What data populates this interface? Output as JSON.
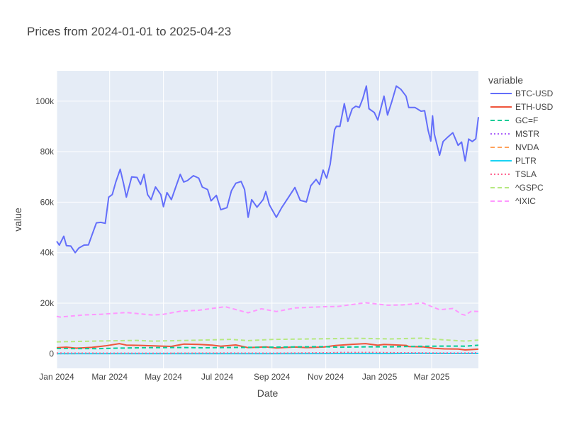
{
  "chart_data": {
    "type": "line",
    "title": "Prices from 2024-01-01 to 2025-04-23",
    "xlabel": "Date",
    "ylabel": "value",
    "x_range": [
      "2024-01-01",
      "2025-04-23"
    ],
    "ylim": [
      -5800,
      112000
    ],
    "x_ticks": [
      {
        "date": "2024-01-01",
        "label": "Jan 2024"
      },
      {
        "date": "2024-03-01",
        "label": "Mar 2024"
      },
      {
        "date": "2024-05-01",
        "label": "May 2024"
      },
      {
        "date": "2024-07-01",
        "label": "Jul 2024"
      },
      {
        "date": "2024-09-01",
        "label": "Sep 2024"
      },
      {
        "date": "2024-11-01",
        "label": "Nov 2024"
      },
      {
        "date": "2025-01-01",
        "label": "Jan 2025"
      },
      {
        "date": "2025-03-01",
        "label": "Mar 2025"
      }
    ],
    "y_ticks": [
      {
        "value": 0,
        "label": "0"
      },
      {
        "value": 20000,
        "label": "20k"
      },
      {
        "value": 40000,
        "label": "40k"
      },
      {
        "value": 60000,
        "label": "60k"
      },
      {
        "value": 80000,
        "label": "80k"
      },
      {
        "value": 100000,
        "label": "100k"
      }
    ],
    "grid": true,
    "plot_background": "#e5ecf6",
    "legend": {
      "title": "variable",
      "placement": "right"
    },
    "series": [
      {
        "name": "BTC-USD",
        "color": "#636efa",
        "dash": "solid",
        "points": [
          [
            "2024-01-01",
            44500
          ],
          [
            "2024-01-04",
            43000
          ],
          [
            "2024-01-09",
            46500
          ],
          [
            "2024-01-12",
            42800
          ],
          [
            "2024-01-17",
            42600
          ],
          [
            "2024-01-22",
            40000
          ],
          [
            "2024-01-26",
            41800
          ],
          [
            "2024-02-01",
            43000
          ],
          [
            "2024-02-06",
            43100
          ],
          [
            "2024-02-10",
            47000
          ],
          [
            "2024-02-15",
            51800
          ],
          [
            "2024-02-20",
            52000
          ],
          [
            "2024-02-25",
            51600
          ],
          [
            "2024-02-29",
            62000
          ],
          [
            "2024-03-04",
            63000
          ],
          [
            "2024-03-08",
            68000
          ],
          [
            "2024-03-13",
            73000
          ],
          [
            "2024-03-17",
            67000
          ],
          [
            "2024-03-20",
            62000
          ],
          [
            "2024-03-26",
            70000
          ],
          [
            "2024-04-01",
            69800
          ],
          [
            "2024-04-05",
            67000
          ],
          [
            "2024-04-09",
            71000
          ],
          [
            "2024-04-13",
            63000
          ],
          [
            "2024-04-17",
            61000
          ],
          [
            "2024-04-22",
            66000
          ],
          [
            "2024-04-28",
            63000
          ],
          [
            "2024-05-01",
            58200
          ],
          [
            "2024-05-05",
            63800
          ],
          [
            "2024-05-10",
            61000
          ],
          [
            "2024-05-15",
            66000
          ],
          [
            "2024-05-20",
            71000
          ],
          [
            "2024-05-24",
            68000
          ],
          [
            "2024-05-28",
            68500
          ],
          [
            "2024-06-04",
            70500
          ],
          [
            "2024-06-10",
            69500
          ],
          [
            "2024-06-14",
            66000
          ],
          [
            "2024-06-20",
            65000
          ],
          [
            "2024-06-24",
            60500
          ],
          [
            "2024-06-30",
            62700
          ],
          [
            "2024-07-05",
            57000
          ],
          [
            "2024-07-12",
            57800
          ],
          [
            "2024-07-17",
            64500
          ],
          [
            "2024-07-22",
            67500
          ],
          [
            "2024-07-28",
            68200
          ],
          [
            "2024-08-01",
            65000
          ],
          [
            "2024-08-05",
            54000
          ],
          [
            "2024-08-09",
            61000
          ],
          [
            "2024-08-15",
            58000
          ],
          [
            "2024-08-22",
            61000
          ],
          [
            "2024-08-25",
            64200
          ],
          [
            "2024-08-29",
            59000
          ],
          [
            "2024-09-06",
            54000
          ],
          [
            "2024-09-12",
            57800
          ],
          [
            "2024-09-18",
            61000
          ],
          [
            "2024-09-27",
            65800
          ],
          [
            "2024-10-03",
            60700
          ],
          [
            "2024-10-10",
            60100
          ],
          [
            "2024-10-15",
            66500
          ],
          [
            "2024-10-21",
            69000
          ],
          [
            "2024-10-25",
            67000
          ],
          [
            "2024-10-29",
            72700
          ],
          [
            "2024-11-02",
            69500
          ],
          [
            "2024-11-06",
            75000
          ],
          [
            "2024-11-11",
            88700
          ],
          [
            "2024-11-13",
            90000
          ],
          [
            "2024-11-17",
            90000
          ],
          [
            "2024-11-22",
            99000
          ],
          [
            "2024-11-26",
            92000
          ],
          [
            "2024-12-01",
            97000
          ],
          [
            "2024-12-05",
            98000
          ],
          [
            "2024-12-09",
            97500
          ],
          [
            "2024-12-13",
            101000
          ],
          [
            "2024-12-17",
            106000
          ],
          [
            "2024-12-20",
            97000
          ],
          [
            "2024-12-26",
            95500
          ],
          [
            "2024-12-30",
            92500
          ],
          [
            "2025-01-06",
            102000
          ],
          [
            "2025-01-10",
            94500
          ],
          [
            "2025-01-15",
            100000
          ],
          [
            "2025-01-20",
            106000
          ],
          [
            "2025-01-25",
            104700
          ],
          [
            "2025-01-31",
            102000
          ],
          [
            "2025-02-03",
            97500
          ],
          [
            "2025-02-10",
            97500
          ],
          [
            "2025-02-17",
            96000
          ],
          [
            "2025-02-21",
            96200
          ],
          [
            "2025-02-25",
            88500
          ],
          [
            "2025-02-28",
            84200
          ],
          [
            "2025-03-02",
            94200
          ],
          [
            "2025-03-04",
            87000
          ],
          [
            "2025-03-10",
            78600
          ],
          [
            "2025-03-14",
            84000
          ],
          [
            "2025-03-20",
            86000
          ],
          [
            "2025-03-25",
            87500
          ],
          [
            "2025-03-31",
            82500
          ],
          [
            "2025-04-04",
            83800
          ],
          [
            "2025-04-08",
            76300
          ],
          [
            "2025-04-12",
            85000
          ],
          [
            "2025-04-16",
            84000
          ],
          [
            "2025-04-20",
            85100
          ],
          [
            "2025-04-23",
            93700
          ]
        ]
      },
      {
        "name": "ETH-USD",
        "color": "#ef553b",
        "dash": "solid",
        "points": [
          [
            "2024-01-01",
            2350
          ],
          [
            "2024-01-12",
            2600
          ],
          [
            "2024-01-23",
            2200
          ],
          [
            "2024-02-10",
            2500
          ],
          [
            "2024-02-25",
            3100
          ],
          [
            "2024-03-12",
            4000
          ],
          [
            "2024-03-20",
            3400
          ],
          [
            "2024-04-05",
            3300
          ],
          [
            "2024-04-20",
            3100
          ],
          [
            "2024-05-01",
            2950
          ],
          [
            "2024-05-10",
            2900
          ],
          [
            "2024-05-24",
            3800
          ],
          [
            "2024-06-10",
            3650
          ],
          [
            "2024-06-25",
            3400
          ],
          [
            "2024-07-05",
            2950
          ],
          [
            "2024-07-22",
            3450
          ],
          [
            "2024-08-05",
            2400
          ],
          [
            "2024-08-25",
            2700
          ],
          [
            "2024-09-06",
            2250
          ],
          [
            "2024-09-27",
            2650
          ],
          [
            "2024-10-10",
            2400
          ],
          [
            "2024-10-30",
            2650
          ],
          [
            "2024-11-12",
            3250
          ],
          [
            "2024-12-01",
            3700
          ],
          [
            "2024-12-16",
            4000
          ],
          [
            "2024-12-30",
            3350
          ],
          [
            "2025-01-06",
            3650
          ],
          [
            "2025-01-31",
            3300
          ],
          [
            "2025-02-03",
            2850
          ],
          [
            "2025-02-20",
            2700
          ],
          [
            "2025-03-04",
            2150
          ],
          [
            "2025-03-15",
            1900
          ],
          [
            "2025-03-31",
            1820
          ],
          [
            "2025-04-08",
            1480
          ],
          [
            "2025-04-23",
            1790
          ]
        ]
      },
      {
        "name": "GC=F",
        "color": "#00cc96",
        "dash": "dash",
        "points": [
          [
            "2024-01-01",
            2060
          ],
          [
            "2024-02-15",
            2000
          ],
          [
            "2024-03-10",
            2180
          ],
          [
            "2024-04-12",
            2380
          ],
          [
            "2024-05-20",
            2440
          ],
          [
            "2024-06-15",
            2320
          ],
          [
            "2024-07-15",
            2460
          ],
          [
            "2024-08-20",
            2520
          ],
          [
            "2024-09-25",
            2680
          ],
          [
            "2024-10-30",
            2790
          ],
          [
            "2024-11-15",
            2570
          ],
          [
            "2024-12-10",
            2700
          ],
          [
            "2025-01-15",
            2720
          ],
          [
            "2025-02-15",
            2930
          ],
          [
            "2025-03-15",
            3000
          ],
          [
            "2025-04-08",
            2980
          ],
          [
            "2025-04-23",
            3330
          ]
        ]
      },
      {
        "name": "MSTR",
        "color": "#ab63fa",
        "dash": "dot",
        "points": [
          [
            "2024-01-01",
            60
          ],
          [
            "2024-02-10",
            80
          ],
          [
            "2024-03-20",
            160
          ],
          [
            "2024-05-01",
            120
          ],
          [
            "2024-06-15",
            150
          ],
          [
            "2024-08-05",
            130
          ],
          [
            "2024-09-15",
            140
          ],
          [
            "2024-10-20",
            220
          ],
          [
            "2024-11-20",
            450
          ],
          [
            "2024-12-20",
            330
          ],
          [
            "2025-01-31",
            340
          ],
          [
            "2025-02-28",
            250
          ],
          [
            "2025-03-20",
            300
          ],
          [
            "2025-04-08",
            270
          ],
          [
            "2025-04-23",
            340
          ]
        ]
      },
      {
        "name": "NVDA",
        "color": "#ffa15a",
        "dash": "dash",
        "points": [
          [
            "2024-01-01",
            48
          ],
          [
            "2024-03-01",
            82
          ],
          [
            "2024-06-15",
            130
          ],
          [
            "2024-08-05",
            100
          ],
          [
            "2024-11-15",
            145
          ],
          [
            "2025-01-06",
            149
          ],
          [
            "2025-03-01",
            125
          ],
          [
            "2025-04-08",
            96
          ],
          [
            "2025-04-23",
            102
          ]
        ]
      },
      {
        "name": "PLTR",
        "color": "#19d3f3",
        "dash": "solid",
        "points": [
          [
            "2024-01-01",
            17
          ],
          [
            "2024-05-01",
            22
          ],
          [
            "2024-09-01",
            31
          ],
          [
            "2024-11-15",
            60
          ],
          [
            "2025-01-15",
            70
          ],
          [
            "2025-02-18",
            124
          ],
          [
            "2025-04-08",
            77
          ],
          [
            "2025-04-23",
            100
          ]
        ]
      },
      {
        "name": "TSLA",
        "color": "#ff6692",
        "dash": "dot",
        "points": [
          [
            "2024-01-01",
            248
          ],
          [
            "2024-04-20",
            142
          ],
          [
            "2024-07-10",
            263
          ],
          [
            "2024-09-01",
            214
          ],
          [
            "2024-12-17",
            479
          ],
          [
            "2025-03-10",
            222
          ],
          [
            "2025-04-08",
            221
          ],
          [
            "2025-04-23",
            250
          ]
        ]
      },
      {
        "name": "^GSPC",
        "color": "#b6e880",
        "dash": "dash",
        "points": [
          [
            "2024-01-01",
            4700
          ],
          [
            "2024-02-15",
            5000
          ],
          [
            "2024-04-01",
            5250
          ],
          [
            "2024-04-19",
            4970
          ],
          [
            "2024-06-01",
            5280
          ],
          [
            "2024-07-16",
            5660
          ],
          [
            "2024-08-05",
            5180
          ],
          [
            "2024-09-01",
            5650
          ],
          [
            "2024-10-15",
            5850
          ],
          [
            "2024-12-06",
            6090
          ],
          [
            "2025-01-13",
            5830
          ],
          [
            "2025-02-19",
            6140
          ],
          [
            "2025-03-13",
            5520
          ],
          [
            "2025-04-08",
            4980
          ],
          [
            "2025-04-23",
            5380
          ]
        ]
      },
      {
        "name": "^IXIC",
        "color": "#ff97ff",
        "dash": "dash",
        "points": [
          [
            "2024-01-01",
            14800
          ],
          [
            "2024-01-05",
            14500
          ],
          [
            "2024-02-01",
            15350
          ],
          [
            "2024-02-20",
            15600
          ],
          [
            "2024-03-20",
            16300
          ],
          [
            "2024-04-19",
            15280
          ],
          [
            "2024-05-01",
            15600
          ],
          [
            "2024-05-20",
            16800
          ],
          [
            "2024-06-10",
            17200
          ],
          [
            "2024-07-10",
            18600
          ],
          [
            "2024-07-25",
            17200
          ],
          [
            "2024-08-05",
            16200
          ],
          [
            "2024-08-20",
            17800
          ],
          [
            "2024-09-06",
            16700
          ],
          [
            "2024-09-27",
            18100
          ],
          [
            "2024-10-30",
            18600
          ],
          [
            "2024-11-15",
            18700
          ],
          [
            "2024-12-16",
            20170
          ],
          [
            "2025-01-10",
            19200
          ],
          [
            "2025-01-27",
            19300
          ],
          [
            "2025-02-19",
            20050
          ],
          [
            "2025-03-10",
            17400
          ],
          [
            "2025-03-25",
            17900
          ],
          [
            "2025-04-04",
            15590
          ],
          [
            "2025-04-08",
            15270
          ],
          [
            "2025-04-15",
            16800
          ],
          [
            "2025-04-23",
            16700
          ]
        ]
      }
    ]
  }
}
